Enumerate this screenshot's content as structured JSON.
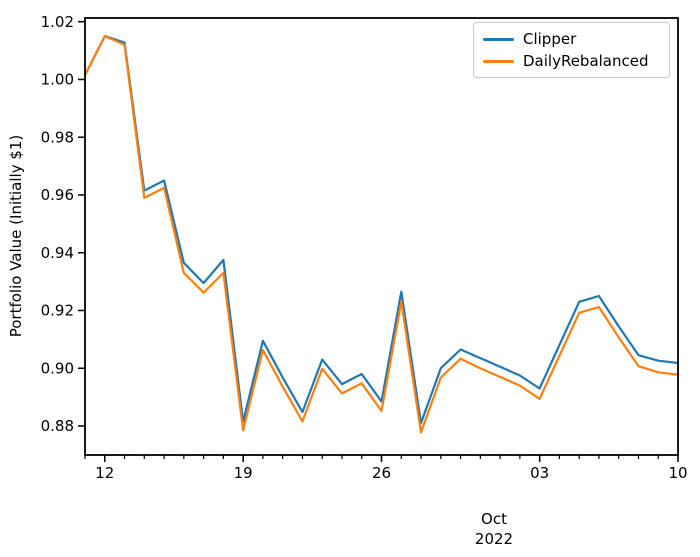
{
  "chart_data": {
    "type": "line",
    "title": "",
    "ylabel": "Portfolio Value (Initially $1)",
    "x_offset_label_line1": "Oct",
    "x_offset_label_line2": "2022",
    "x_range": {
      "start": "Oct 11, 2022",
      "end": "Nov 10, 2022",
      "freq": "daily"
    },
    "n_points": 31,
    "grid": false,
    "legend_position": "upper right",
    "axis_color": "#000000",
    "y_ticks": [
      1.02,
      1.0,
      0.98,
      0.96,
      0.94,
      0.92,
      0.9,
      0.88
    ],
    "ylim": [
      0.8707,
      1.0213
    ],
    "x_major_ticks": [
      {
        "day_index": 1,
        "label": "12"
      },
      {
        "day_index": 8,
        "label": "19"
      },
      {
        "day_index": 15,
        "label": "26"
      },
      {
        "day_index": 23,
        "label": "03"
      },
      {
        "day_index": 30,
        "label": "10"
      }
    ],
    "series": [
      {
        "name": "Clipper",
        "color": "#1f77b4",
        "values": [
          1.0015,
          1.015,
          1.0128,
          0.9615,
          0.965,
          0.9365,
          0.9295,
          0.9375,
          0.8815,
          0.9095,
          0.8968,
          0.8848,
          0.903,
          0.8945,
          0.898,
          0.8885,
          0.9265,
          0.881,
          0.9,
          0.9065,
          0.9035,
          0.9005,
          0.8975,
          0.893,
          0.908,
          0.923,
          0.925,
          0.9145,
          0.9045,
          0.9026,
          0.9018
        ]
      },
      {
        "name": "DailyRebalanced",
        "color": "#ff7f0e",
        "values": [
          1.0015,
          1.015,
          1.012,
          0.959,
          0.9625,
          0.933,
          0.9262,
          0.933,
          0.8785,
          0.9063,
          0.8936,
          0.8816,
          0.8998,
          0.8913,
          0.8948,
          0.8852,
          0.923,
          0.8778,
          0.8968,
          0.9033,
          0.9,
          0.897,
          0.894,
          0.8894,
          0.9043,
          0.9192,
          0.9212,
          0.9107,
          0.9007,
          0.8986,
          0.8978
        ]
      }
    ]
  }
}
